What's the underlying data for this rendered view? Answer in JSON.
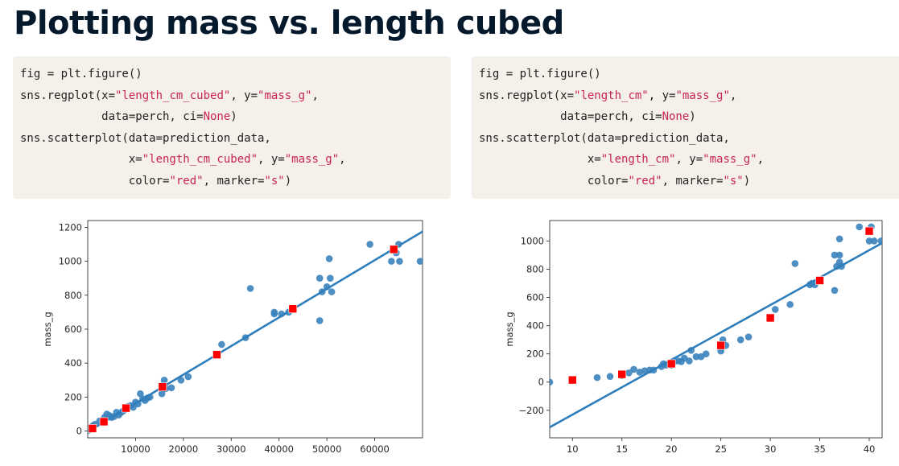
{
  "slide": {
    "title": "Plotting mass vs. length cubed"
  },
  "code_left": [
    [
      {
        "t": "fig = plt.figure()"
      }
    ],
    [
      {
        "t": "sns.regplot(x="
      },
      {
        "t": "\"length_cm_cubed\"",
        "c": "str"
      },
      {
        "t": ", y="
      },
      {
        "t": "\"mass_g\"",
        "c": "str"
      },
      {
        "t": ","
      }
    ],
    [
      {
        "t": "            data=perch, ci="
      },
      {
        "t": "None",
        "c": "kw"
      },
      {
        "t": ")"
      }
    ],
    [
      {
        "t": "sns.scatterplot(data=prediction_data,"
      }
    ],
    [
      {
        "t": "                x="
      },
      {
        "t": "\"length_cm_cubed\"",
        "c": "str"
      },
      {
        "t": ", y="
      },
      {
        "t": "\"mass_g\"",
        "c": "str"
      },
      {
        "t": ","
      }
    ],
    [
      {
        "t": "                color="
      },
      {
        "t": "\"red\"",
        "c": "str"
      },
      {
        "t": ", marker="
      },
      {
        "t": "\"s\"",
        "c": "str"
      },
      {
        "t": ")"
      }
    ]
  ],
  "code_right": [
    [
      {
        "t": "fig = plt.figure()"
      }
    ],
    [
      {
        "t": "sns.regplot(x="
      },
      {
        "t": "\"length_cm\"",
        "c": "str"
      },
      {
        "t": ", y="
      },
      {
        "t": "\"mass_g\"",
        "c": "str"
      },
      {
        "t": ","
      }
    ],
    [
      {
        "t": "            data=perch, ci="
      },
      {
        "t": "None",
        "c": "kw"
      },
      {
        "t": ")"
      }
    ],
    [
      {
        "t": "sns.scatterplot(data=prediction_data,"
      }
    ],
    [
      {
        "t": "                x="
      },
      {
        "t": "\"length_cm\"",
        "c": "str"
      },
      {
        "t": ", y="
      },
      {
        "t": "\"mass_g\"",
        "c": "str"
      },
      {
        "t": ","
      }
    ],
    [
      {
        "t": "                color="
      },
      {
        "t": "\"red\"",
        "c": "str"
      },
      {
        "t": ", marker="
      },
      {
        "t": "\"s\"",
        "c": "str"
      },
      {
        "t": ")"
      }
    ]
  ],
  "colors": {
    "point": "#3a82bd",
    "line": "#2f7ebc",
    "prediction": "#ff0000"
  },
  "chart_data": [
    {
      "type": "scatter",
      "xlabel": "",
      "ylabel": "mass_g",
      "xlim": [
        0,
        70000
      ],
      "ylim": [
        -40,
        1240
      ],
      "xticks": [
        10000,
        20000,
        30000,
        40000,
        50000,
        60000
      ],
      "yticks": [
        0,
        200,
        400,
        600,
        800,
        1000,
        1200
      ],
      "regression_line": [
        [
          0,
          -5
        ],
        [
          70000,
          1175
        ]
      ],
      "series": [
        {
          "kind": "observed",
          "points": [
            [
              250,
              5
            ],
            [
              1000,
              30
            ],
            [
              1500,
              40
            ],
            [
              2500,
              60
            ],
            [
              3500,
              80
            ],
            [
              4000,
              100
            ],
            [
              4600,
              90
            ],
            [
              5000,
              80
            ],
            [
              5500,
              85
            ],
            [
              6000,
              110
            ],
            [
              6500,
              95
            ],
            [
              7000,
              110
            ],
            [
              7500,
              120
            ],
            [
              8000,
              130
            ],
            [
              8500,
              145
            ],
            [
              9000,
              150
            ],
            [
              9500,
              140
            ],
            [
              10000,
              170
            ],
            [
              10500,
              160
            ],
            [
              11000,
              220
            ],
            [
              11500,
              190
            ],
            [
              12000,
              180
            ],
            [
              12500,
              195
            ],
            [
              13000,
              200
            ],
            [
              15500,
              220
            ],
            [
              15700,
              270
            ],
            [
              16000,
              300
            ],
            [
              16300,
              250
            ],
            [
              17500,
              255
            ],
            [
              19500,
              300
            ],
            [
              21000,
              320
            ],
            [
              27000,
              450
            ],
            [
              28000,
              510
            ],
            [
              33000,
              550
            ],
            [
              34000,
              840
            ],
            [
              39000,
              690
            ],
            [
              39000,
              700
            ],
            [
              40500,
              690
            ],
            [
              42000,
              700
            ],
            [
              43000,
              725
            ],
            [
              48500,
              650
            ],
            [
              48500,
              900
            ],
            [
              49000,
              820
            ],
            [
              50000,
              850
            ],
            [
              50500,
              1015
            ],
            [
              50700,
              900
            ],
            [
              51000,
              820
            ],
            [
              59000,
              1100
            ],
            [
              63500,
              1000
            ],
            [
              64500,
              1050
            ],
            [
              65000,
              1100
            ],
            [
              65200,
              1000
            ],
            [
              69500,
              1000
            ]
          ]
        },
        {
          "kind": "prediction",
          "points": [
            [
              1000,
              15
            ],
            [
              3375,
              55
            ],
            [
              8000,
              135
            ],
            [
              15625,
              260
            ],
            [
              27000,
              450
            ],
            [
              42875,
              720
            ],
            [
              64000,
              1070
            ]
          ]
        }
      ]
    },
    {
      "type": "scatter",
      "xlabel": "",
      "ylabel": "mass_g",
      "xlim": [
        7.7,
        41.3
      ],
      "ylim": [
        -395,
        1145
      ],
      "xticks": [
        10,
        15,
        20,
        25,
        30,
        35,
        40
      ],
      "yticks": [
        -200,
        0,
        200,
        400,
        600,
        800,
        1000
      ],
      "regression_line": [
        [
          7.7,
          -320
        ],
        [
          41.3,
          985
        ]
      ],
      "series": [
        {
          "kind": "observed",
          "points": [
            [
              7.7,
              0
            ],
            [
              12.5,
              32
            ],
            [
              13.8,
              40
            ],
            [
              15,
              45
            ],
            [
              15.7,
              65
            ],
            [
              16.2,
              90
            ],
            [
              16.8,
              70
            ],
            [
              17.3,
              80
            ],
            [
              17.8,
              85
            ],
            [
              18.2,
              85
            ],
            [
              19,
              110
            ],
            [
              19.2,
              130
            ],
            [
              19.5,
              120
            ],
            [
              20,
              120
            ],
            [
              20,
              135
            ],
            [
              20.3,
              145
            ],
            [
              20.7,
              150
            ],
            [
              21,
              145
            ],
            [
              21.3,
              170
            ],
            [
              21.8,
              150
            ],
            [
              22,
              225
            ],
            [
              22.5,
              180
            ],
            [
              23,
              180
            ],
            [
              23.5,
              200
            ],
            [
              25,
              250
            ],
            [
              25,
              220
            ],
            [
              25.2,
              300
            ],
            [
              25.5,
              260
            ],
            [
              27,
              300
            ],
            [
              27.8,
              320
            ],
            [
              30,
              455
            ],
            [
              30.5,
              515
            ],
            [
              32,
              550
            ],
            [
              32.5,
              840
            ],
            [
              34,
              690
            ],
            [
              34.2,
              700
            ],
            [
              34.5,
              690
            ],
            [
              35,
              720
            ],
            [
              36.5,
              650
            ],
            [
              36.5,
              900
            ],
            [
              36.7,
              820
            ],
            [
              37,
              850
            ],
            [
              37,
              1015
            ],
            [
              37,
              900
            ],
            [
              37.2,
              820
            ],
            [
              39,
              1100
            ],
            [
              40,
              1000
            ],
            [
              40.2,
              1100
            ],
            [
              40.5,
              1000
            ],
            [
              41.2,
              1000
            ]
          ]
        },
        {
          "kind": "prediction",
          "points": [
            [
              10,
              15
            ],
            [
              15,
              55
            ],
            [
              20,
              130
            ],
            [
              25,
              260
            ],
            [
              30,
              455
            ],
            [
              35,
              720
            ],
            [
              40,
              1070
            ]
          ]
        }
      ]
    }
  ]
}
